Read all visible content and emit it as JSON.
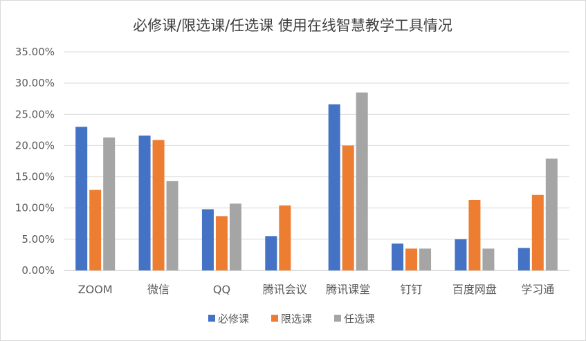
{
  "chart_data": {
    "type": "bar",
    "title": "必修课/限选课/任选课 使用在线智慧教学工具情况",
    "categories": [
      "ZOOM",
      "微信",
      "QQ",
      "腾讯会议",
      "腾讯课堂",
      "钉钉",
      "百度网盘",
      "学习通"
    ],
    "series": [
      {
        "name": "必修课",
        "color": "#4472C4",
        "values": [
          23.0,
          21.6,
          9.8,
          5.5,
          26.6,
          4.3,
          5.0,
          3.6
        ]
      },
      {
        "name": "限选课",
        "color": "#ED7D31",
        "values": [
          12.9,
          20.9,
          8.7,
          10.4,
          20.0,
          3.5,
          11.3,
          12.1
        ]
      },
      {
        "name": "任选课",
        "color": "#A5A5A5",
        "values": [
          21.3,
          14.3,
          10.7,
          0,
          28.5,
          3.5,
          3.5,
          17.9
        ]
      }
    ],
    "y_ticks": [
      "0.00%",
      "5.00%",
      "10.00%",
      "15.00%",
      "20.00%",
      "25.00%",
      "30.00%",
      "35.00%"
    ],
    "ylim": [
      0,
      35
    ],
    "grid": true,
    "legend_position": "bottom"
  }
}
